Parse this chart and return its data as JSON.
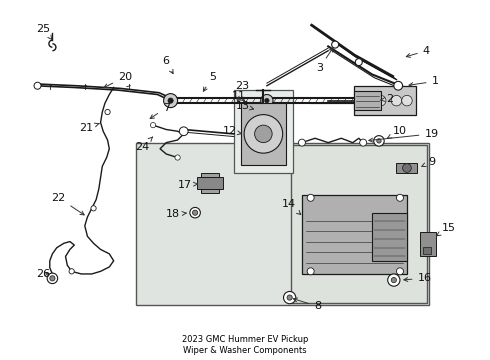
{
  "title": "2023 GMC Hummer EV Pickup\nWiper & Washer Components",
  "bg_color": "#ffffff",
  "font_size": 8,
  "line_color": "#1a1a1a",
  "box_fill": "#e0e4e0",
  "box_fill2": "#dde2dd",
  "inner_box_fill": "#e8ece8"
}
